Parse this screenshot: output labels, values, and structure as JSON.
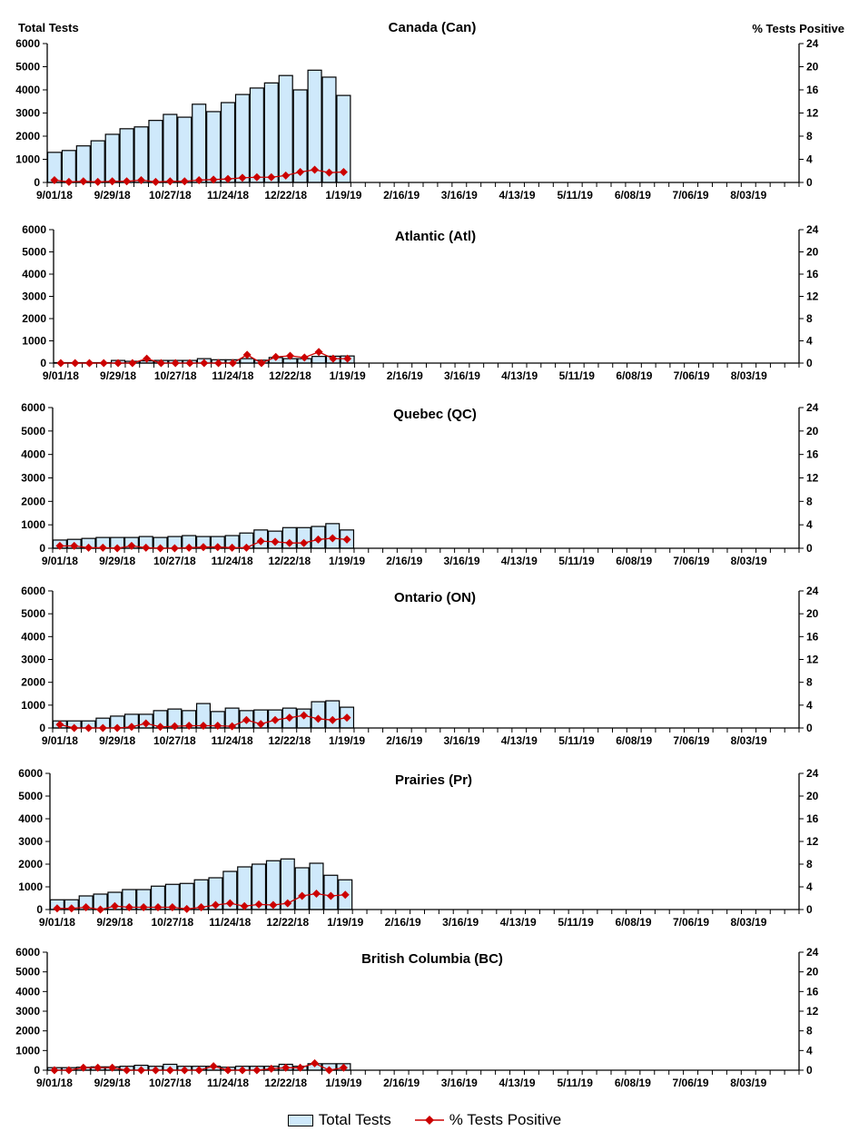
{
  "colors": {
    "bar_fill": "#cfe9fb",
    "bar_stroke": "#000000",
    "line": "#cc0000"
  },
  "legend": {
    "bars": "Total Tests",
    "line": "% Tests Positive"
  },
  "chart_data": [
    {
      "type": "bar+line",
      "title": "Canada (Can)",
      "ylabel": "Total Tests",
      "ylabel_right": "% Tests Positive",
      "ylim": [
        0,
        6000
      ],
      "ylim_right": [
        0,
        24
      ],
      "yticks": [
        "0",
        "1000",
        "2000",
        "3000",
        "4000",
        "5000",
        "6000"
      ],
      "yticks_right": [
        "0",
        "4",
        "8",
        "12",
        "16",
        "20",
        "24"
      ],
      "x_tick_labels": [
        "9/01/18",
        "9/29/18",
        "10/27/18",
        "11/24/18",
        "12/22/18",
        "1/19/19",
        "2/16/19",
        "3/16/19",
        "4/13/19",
        "5/11/19",
        "6/08/19",
        "7/06/19",
        "8/03/19"
      ],
      "weeks": 52,
      "grid": false,
      "series": [
        {
          "name": "Total Tests",
          "type": "bar",
          "values": [
            1300,
            1380,
            1580,
            1800,
            2080,
            2320,
            2400,
            2680,
            2940,
            2820,
            3380,
            3060,
            3450,
            3800,
            4080,
            4300,
            4620,
            4000,
            4850,
            4550,
            3760
          ]
        },
        {
          "name": "% Tests Positive",
          "type": "line",
          "values": [
            0.4,
            0.1,
            0.2,
            0.1,
            0.2,
            0.2,
            0.4,
            0.1,
            0.2,
            0.2,
            0.4,
            0.5,
            0.6,
            0.8,
            0.9,
            0.9,
            1.2,
            1.8,
            2.2,
            1.7,
            1.8
          ]
        }
      ]
    },
    {
      "type": "bar+line",
      "title": "Atlantic (Atl)",
      "ylabel": "",
      "ylabel_right": "",
      "ylim": [
        0,
        6000
      ],
      "ylim_right": [
        0,
        24
      ],
      "yticks": [
        "0",
        "1000",
        "2000",
        "3000",
        "4000",
        "5000",
        "6000"
      ],
      "yticks_right": [
        "0",
        "4",
        "8",
        "12",
        "16",
        "20",
        "24"
      ],
      "x_tick_labels": [
        "9/01/18",
        "9/29/18",
        "10/27/18",
        "11/24/18",
        "12/22/18",
        "1/19/19",
        "2/16/19",
        "3/16/19",
        "4/13/19",
        "5/11/19",
        "6/08/19",
        "7/06/19",
        "8/03/19"
      ],
      "weeks": 52,
      "grid": false,
      "series": [
        {
          "name": "Total Tests",
          "type": "bar",
          "values": [
            20,
            20,
            20,
            20,
            120,
            80,
            100,
            120,
            120,
            120,
            200,
            150,
            150,
            200,
            130,
            250,
            200,
            200,
            300,
            310,
            320
          ]
        },
        {
          "name": "% Tests Positive",
          "type": "line",
          "values": [
            0,
            0,
            0,
            0,
            0,
            0,
            0.8,
            0,
            0,
            0,
            0,
            0,
            0,
            1.5,
            0,
            1.1,
            1.3,
            1.0,
            2.0,
            0.8,
            0.8
          ]
        }
      ]
    },
    {
      "type": "bar+line",
      "title": "Quebec (QC)",
      "ylabel": "",
      "ylabel_right": "",
      "ylim": [
        0,
        6000
      ],
      "ylim_right": [
        0,
        24
      ],
      "yticks": [
        "0",
        "1000",
        "2000",
        "3000",
        "4000",
        "5000",
        "6000"
      ],
      "yticks_right": [
        "0",
        "4",
        "8",
        "12",
        "16",
        "20",
        "24"
      ],
      "x_tick_labels": [
        "9/01/18",
        "9/29/18",
        "10/27/18",
        "11/24/18",
        "12/22/18",
        "1/19/19",
        "2/16/19",
        "3/16/19",
        "4/13/19",
        "5/11/19",
        "6/08/19",
        "7/06/19",
        "8/03/19"
      ],
      "weeks": 52,
      "grid": false,
      "series": [
        {
          "name": "Total Tests",
          "type": "bar",
          "values": [
            350,
            380,
            420,
            460,
            460,
            460,
            500,
            460,
            500,
            540,
            500,
            500,
            540,
            650,
            780,
            730,
            880,
            880,
            930,
            1050,
            780
          ]
        },
        {
          "name": "% Tests Positive",
          "type": "line",
          "values": [
            0.4,
            0.4,
            0.1,
            0.1,
            0,
            0.4,
            0.1,
            0,
            0,
            0.1,
            0.2,
            0.2,
            0.1,
            0.1,
            1.2,
            1.1,
            0.9,
            0.9,
            1.5,
            1.7,
            1.5
          ]
        }
      ]
    },
    {
      "type": "bar+line",
      "title": "Ontario (ON)",
      "ylabel": "",
      "ylabel_right": "",
      "ylim": [
        0,
        6000
      ],
      "ylim_right": [
        0,
        24
      ],
      "yticks": [
        "0",
        "1000",
        "2000",
        "3000",
        "4000",
        "5000",
        "6000"
      ],
      "yticks_right": [
        "0",
        "4",
        "8",
        "12",
        "16",
        "20",
        "24"
      ],
      "x_tick_labels": [
        "9/01/18",
        "9/29/18",
        "10/27/18",
        "11/24/18",
        "12/22/18",
        "1/19/19",
        "2/16/19",
        "3/16/19",
        "4/13/19",
        "5/11/19",
        "6/08/19",
        "7/06/19",
        "8/03/19"
      ],
      "weeks": 52,
      "grid": false,
      "series": [
        {
          "name": "Total Tests",
          "type": "bar",
          "values": [
            310,
            310,
            310,
            430,
            520,
            600,
            600,
            760,
            830,
            760,
            1070,
            720,
            870,
            760,
            790,
            790,
            870,
            830,
            1150,
            1190,
            910
          ]
        },
        {
          "name": "% Tests Positive",
          "type": "line",
          "values": [
            0.6,
            0,
            0,
            0,
            0,
            0.2,
            0.8,
            0.2,
            0.3,
            0.4,
            0.4,
            0.4,
            0.3,
            1.4,
            0.7,
            1.4,
            1.8,
            2.2,
            1.6,
            1.4,
            1.8
          ]
        }
      ]
    },
    {
      "type": "bar+line",
      "title": "Prairies (Pr)",
      "ylabel": "",
      "ylabel_right": "",
      "ylim": [
        0,
        6000
      ],
      "ylim_right": [
        0,
        24
      ],
      "yticks": [
        "0",
        "1000",
        "2000",
        "3000",
        "4000",
        "5000",
        "6000"
      ],
      "yticks_right": [
        "0",
        "4",
        "8",
        "12",
        "16",
        "20",
        "24"
      ],
      "x_tick_labels": [
        "9/01/18",
        "9/29/18",
        "10/27/18",
        "11/24/18",
        "12/22/18",
        "1/19/19",
        "2/16/19",
        "3/16/19",
        "4/13/19",
        "5/11/19",
        "6/08/19",
        "7/06/19",
        "8/03/19"
      ],
      "weeks": 52,
      "grid": false,
      "series": [
        {
          "name": "Total Tests",
          "type": "bar",
          "values": [
            430,
            430,
            600,
            680,
            760,
            880,
            880,
            1030,
            1110,
            1150,
            1310,
            1400,
            1680,
            1880,
            2000,
            2150,
            2230,
            1840,
            2040,
            1510,
            1310
          ]
        },
        {
          "name": "% Tests Positive",
          "type": "line",
          "values": [
            0.2,
            0.2,
            0.4,
            0,
            0.6,
            0.4,
            0.4,
            0.4,
            0.4,
            0.1,
            0.4,
            0.8,
            1.1,
            0.6,
            0.9,
            0.8,
            1.1,
            2.4,
            2.8,
            2.4,
            2.6
          ]
        }
      ]
    },
    {
      "type": "bar+line",
      "title": "British Columbia (BC)",
      "ylabel": "",
      "ylabel_right": "",
      "ylim": [
        0,
        6000
      ],
      "ylim_right": [
        0,
        24
      ],
      "yticks": [
        "0",
        "1000",
        "2000",
        "3000",
        "4000",
        "5000",
        "6000"
      ],
      "yticks_right": [
        "0",
        "4",
        "8",
        "12",
        "16",
        "20",
        "24"
      ],
      "x_tick_labels": [
        "9/01/18",
        "9/29/18",
        "10/27/18",
        "11/24/18",
        "12/22/18",
        "1/19/19",
        "2/16/19",
        "3/16/19",
        "4/13/19",
        "5/11/19",
        "6/08/19",
        "7/06/19",
        "8/03/19"
      ],
      "weeks": 52,
      "grid": false,
      "series": [
        {
          "name": "Total Tests",
          "type": "bar",
          "values": [
            130,
            130,
            150,
            170,
            170,
            200,
            250,
            200,
            300,
            200,
            200,
            200,
            150,
            200,
            200,
            200,
            300,
            200,
            330,
            330,
            330
          ]
        },
        {
          "name": "% Tests Positive",
          "type": "line",
          "values": [
            0,
            0,
            0.5,
            0.5,
            0.5,
            0,
            0,
            0,
            0,
            0,
            0,
            0.8,
            0,
            0,
            0,
            0.3,
            0.5,
            0.5,
            1.4,
            0,
            0.5
          ]
        }
      ]
    }
  ]
}
